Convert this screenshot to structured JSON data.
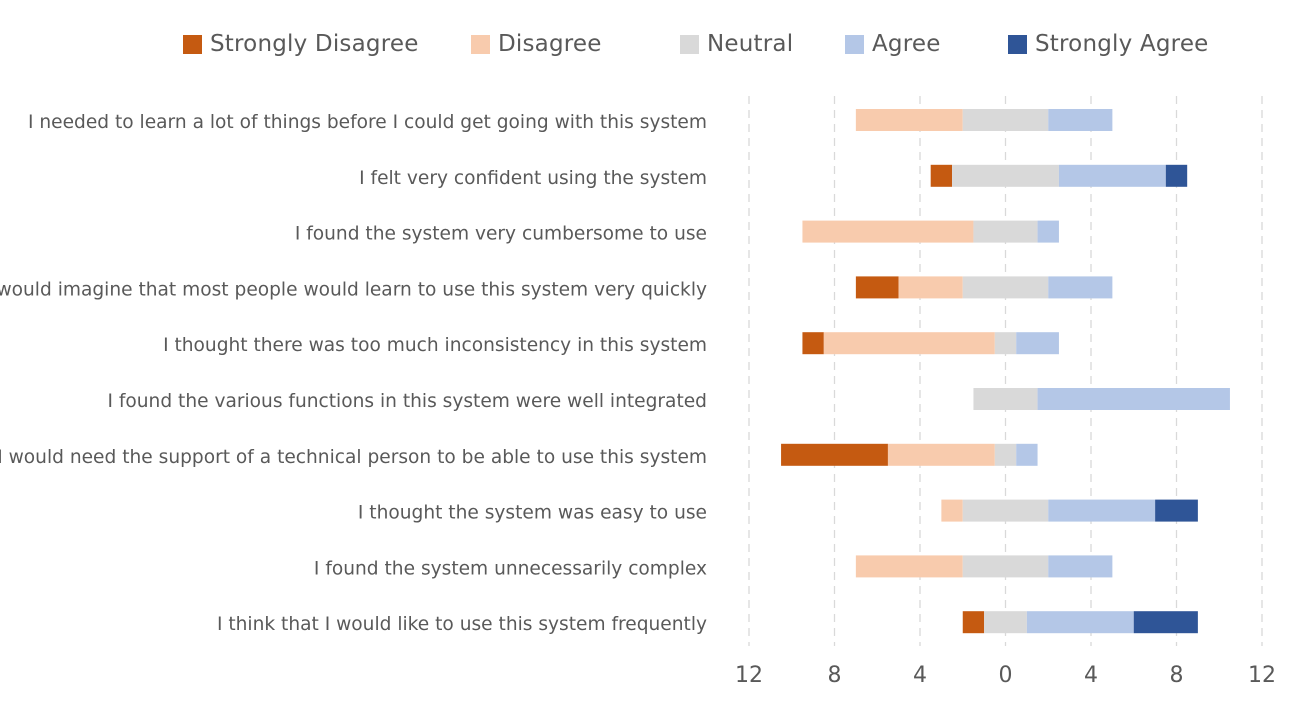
{
  "chart_data": {
    "type": "bar",
    "orientation": "horizontal",
    "stacked": "diverging",
    "title": "",
    "xlabel": "",
    "ylabel": "",
    "xlim": [
      -12,
      12
    ],
    "x_ticks": [
      -12,
      -8,
      -4,
      0,
      4,
      8,
      12
    ],
    "x_tick_labels": [
      "12",
      "8",
      "4",
      "0",
      "4",
      "8",
      "12"
    ],
    "grid": "vertical-dashed",
    "legend_position": "top",
    "categories": [
      "I needed to learn a lot of things before I could get going with this system",
      "I felt very confident using the system",
      "I found the system very cumbersome to use",
      "I would imagine that most people would learn to use this system very quickly",
      "I thought there was too much inconsistency in this system",
      "I found the various functions in this system were well integrated",
      "I would need the support of a technical person to be able to use this system",
      "I thought the system was easy to use",
      "I found the system unnecessarily complex",
      "I think that I would like to use this system frequently"
    ],
    "series": [
      {
        "name": "Strongly Disagree",
        "color": "#C55A11",
        "values": [
          0,
          1,
          0,
          2,
          1,
          0,
          5,
          0,
          0,
          1
        ]
      },
      {
        "name": "Disagree",
        "color": "#F8CBAD",
        "values": [
          5,
          0,
          8,
          3,
          8,
          0,
          5,
          1,
          5,
          0
        ]
      },
      {
        "name": "Neutral",
        "color": "#D9D9D9",
        "values": [
          4,
          5,
          3,
          4,
          1,
          3,
          1,
          4,
          4,
          2
        ]
      },
      {
        "name": "Agree",
        "color": "#B4C7E7",
        "values": [
          3,
          5,
          1,
          3,
          2,
          9,
          1,
          5,
          3,
          5
        ]
      },
      {
        "name": "Strongly Agree",
        "color": "#2F5597",
        "values": [
          0,
          1,
          0,
          0,
          0,
          0,
          0,
          2,
          0,
          3
        ]
      }
    ]
  },
  "colors": {
    "text": "#595959",
    "gridline": "#D9D9D9"
  }
}
